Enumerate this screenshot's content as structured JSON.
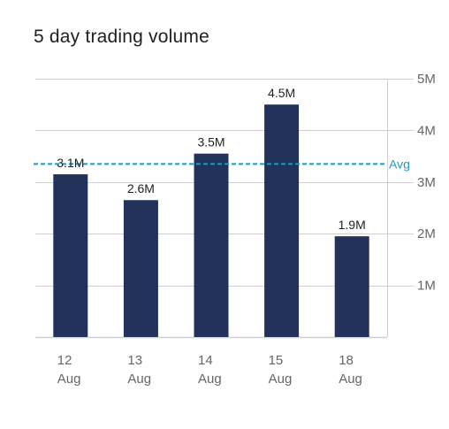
{
  "colors": {
    "bar": "#22325a",
    "avg_line": "#1b9cc4",
    "grid": "#cfcfcf",
    "axis_text": "#666666",
    "label_text": "#222222"
  },
  "chart_data": {
    "type": "bar",
    "title": "5 day trading volume",
    "categories": [
      {
        "day": "12",
        "month": "Aug"
      },
      {
        "day": "13",
        "month": "Aug"
      },
      {
        "day": "14",
        "month": "Aug"
      },
      {
        "day": "15",
        "month": "Aug"
      },
      {
        "day": "18",
        "month": "Aug"
      }
    ],
    "values": [
      3.15,
      2.65,
      3.55,
      4.5,
      1.95
    ],
    "value_labels": [
      "3.1M",
      "2.6M",
      "3.5M",
      "4.5M",
      "1.9M"
    ],
    "ylim": [
      0,
      5
    ],
    "y_ticks": [
      {
        "value": 1,
        "label": "1M"
      },
      {
        "value": 2,
        "label": "2M"
      },
      {
        "value": 3,
        "label": "3M"
      },
      {
        "value": 4,
        "label": "4M"
      },
      {
        "value": 5,
        "label": "5M"
      }
    ],
    "y_axis_side": "right",
    "grid": true,
    "average": {
      "value": 3.35,
      "label": "Avg"
    }
  }
}
